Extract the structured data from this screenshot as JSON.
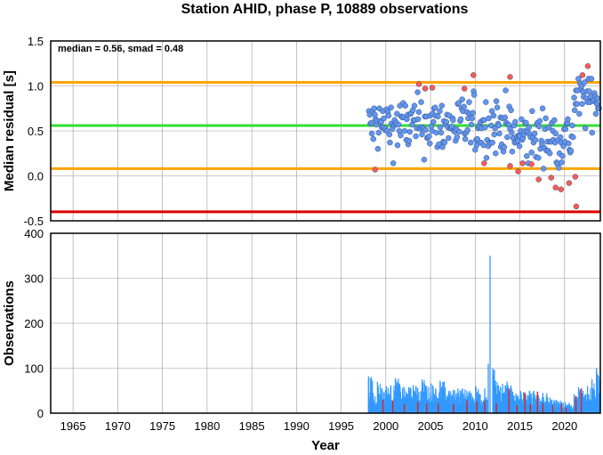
{
  "chart_data": [
    {
      "type": "scatter",
      "title": "Station AHID, phase P, 10889 observations",
      "xlabel": "",
      "ylabel": "Median residual [s]",
      "annotation": "median = 0.56, smad = 0.48",
      "xlim": [
        1962.5,
        2024.0
      ],
      "ylim": [
        -0.5,
        1.5
      ],
      "yticks": [
        "-0.5",
        "0.0",
        "0.5",
        "1.0",
        "1.5"
      ],
      "grid": true,
      "reference_lines": [
        {
          "value": 0.56,
          "color": "#33dd33"
        },
        {
          "value": 1.04,
          "color": "#ffa500"
        },
        {
          "value": 0.08,
          "color": "#ffa500"
        },
        {
          "value": -0.4,
          "color": "#dd0000"
        }
      ],
      "series": [
        {
          "color": "#6495ed",
          "points": []
        },
        {
          "color": "#ff5a4f",
          "points": [
            [
              1998.8,
              0.07
            ],
            [
              2003.7,
              1.02
            ],
            [
              2004.4,
              0.97
            ],
            [
              2005.2,
              0.98
            ],
            [
              2008.8,
              0.97
            ],
            [
              2009.8,
              1.12
            ],
            [
              2011.0,
              0.14
            ],
            [
              2013.9,
              1.1
            ],
            [
              2013.9,
              0.11
            ],
            [
              2014.8,
              0.05
            ],
            [
              2015.3,
              0.14
            ],
            [
              2016.3,
              0.13
            ],
            [
              2017.1,
              -0.04
            ],
            [
              2018.5,
              -0.02
            ],
            [
              2019.0,
              -0.13
            ],
            [
              2019.6,
              -0.15
            ],
            [
              2020.5,
              -0.08
            ],
            [
              2021.2,
              -0.01
            ],
            [
              2021.3,
              -0.34
            ],
            [
              2022.0,
              1.12
            ],
            [
              2022.6,
              1.22
            ]
          ]
        }
      ]
    },
    {
      "type": "bar",
      "title": "",
      "xlabel": "Year",
      "ylabel": "Observations",
      "xlim": [
        1962.5,
        2024.0
      ],
      "ylim": [
        0,
        400
      ],
      "yticks": [
        "0",
        "100",
        "200",
        "300",
        "400"
      ],
      "xticks": [
        "1965",
        "1970",
        "1975",
        "1980",
        "1985",
        "1990",
        "1995",
        "2000",
        "2005",
        "2010",
        "2015",
        "2020"
      ],
      "grid": true,
      "series": [
        {
          "color": "#3399ff",
          "points": [
            [
              1998.0,
              82
            ],
            [
              1998.5,
              45
            ],
            [
              1999.0,
              70
            ],
            [
              1999.5,
              55
            ],
            [
              2000.0,
              60
            ],
            [
              2000.5,
              62
            ],
            [
              2001.0,
              78
            ],
            [
              2001.5,
              60
            ],
            [
              2002.0,
              55
            ],
            [
              2002.5,
              58
            ],
            [
              2003.0,
              62
            ],
            [
              2003.5,
              56
            ],
            [
              2004.0,
              75
            ],
            [
              2004.5,
              60
            ],
            [
              2005.0,
              66
            ],
            [
              2005.5,
              55
            ],
            [
              2006.0,
              72
            ],
            [
              2006.5,
              58
            ],
            [
              2007.0,
              50
            ],
            [
              2007.5,
              52
            ],
            [
              2008.0,
              55
            ],
            [
              2008.5,
              55
            ],
            [
              2009.0,
              50
            ],
            [
              2009.5,
              45
            ],
            [
              2010.0,
              60
            ],
            [
              2010.5,
              42
            ],
            [
              2011.0,
              55
            ],
            [
              2011.4,
              110
            ],
            [
              2011.6,
              350
            ],
            [
              2011.9,
              100
            ],
            [
              2012.2,
              72
            ],
            [
              2012.5,
              62
            ],
            [
              2013.0,
              65
            ],
            [
              2013.5,
              70
            ],
            [
              2014.0,
              55
            ],
            [
              2014.5,
              44
            ],
            [
              2015.0,
              50
            ],
            [
              2015.5,
              45
            ],
            [
              2016.0,
              50
            ],
            [
              2016.5,
              50
            ],
            [
              2017.0,
              40
            ],
            [
              2017.5,
              45
            ],
            [
              2018.0,
              35
            ],
            [
              2018.5,
              30
            ],
            [
              2019.0,
              30
            ],
            [
              2019.5,
              25
            ],
            [
              2020.0,
              25
            ],
            [
              2020.5,
              18
            ],
            [
              2021.0,
              42
            ],
            [
              2021.5,
              58
            ],
            [
              2022.0,
              50
            ],
            [
              2022.5,
              60
            ],
            [
              2023.0,
              75
            ],
            [
              2023.5,
              100
            ]
          ]
        },
        {
          "color": "#dd2222",
          "points": [
            [
              1999.6,
              30
            ],
            [
              2000.7,
              28
            ],
            [
              2002.0,
              20
            ],
            [
              2003.5,
              25
            ],
            [
              2004.5,
              22
            ],
            [
              2005.8,
              22
            ],
            [
              2007.5,
              20
            ],
            [
              2009.0,
              28
            ],
            [
              2010.1,
              25
            ],
            [
              2011.0,
              27
            ],
            [
              2012.3,
              22
            ],
            [
              2013.7,
              55
            ],
            [
              2014.6,
              18
            ],
            [
              2015.5,
              45
            ],
            [
              2016.1,
              20
            ],
            [
              2016.9,
              48
            ],
            [
              2017.5,
              22
            ],
            [
              2018.6,
              18
            ],
            [
              2019.6,
              20
            ],
            [
              2020.1,
              12
            ],
            [
              2021.2,
              38
            ],
            [
              2021.8,
              55
            ]
          ]
        }
      ]
    }
  ]
}
